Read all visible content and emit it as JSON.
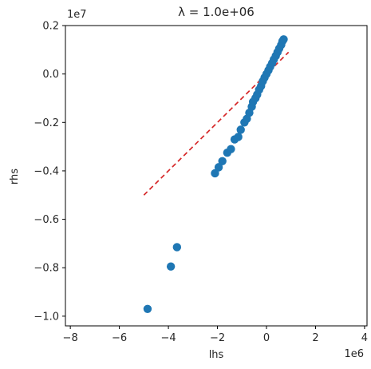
{
  "chart_data": {
    "type": "scatter",
    "title": "λ = 1.0e+06",
    "xlabel": "lhs",
    "ylabel": "rhs",
    "x_offset_label": "1e6",
    "y_offset_label": "1e7",
    "x_scale": 1000000,
    "y_scale": 10000000,
    "xlim": [
      -8200000,
      4100000
    ],
    "ylim": [
      -10400000,
      2000000
    ],
    "x_ticks": [
      -8000000,
      -6000000,
      -4000000,
      -2000000,
      0,
      2000000,
      4000000
    ],
    "x_tick_labels": [
      "−8",
      "−6",
      "−4",
      "−2",
      "0",
      "2",
      "4"
    ],
    "y_ticks": [
      -10000000,
      -8000000,
      -6000000,
      -4000000,
      -2000000,
      0,
      2000000
    ],
    "y_tick_labels": [
      "−1.0",
      "−0.8",
      "−0.6",
      "−0.4",
      "−0.2",
      "0.0",
      "0.2"
    ],
    "grid": false,
    "series": [
      {
        "kind": "points",
        "color": "#1f77b4",
        "points": [
          [
            -4850000,
            -9700000
          ],
          [
            -3900000,
            -7950000
          ],
          [
            -3650000,
            -7150000
          ],
          [
            -2100000,
            -4100000
          ],
          [
            -1950000,
            -3850000
          ],
          [
            -1800000,
            -3600000
          ],
          [
            -1600000,
            -3250000
          ],
          [
            -1450000,
            -3100000
          ],
          [
            -1300000,
            -2700000
          ],
          [
            -1150000,
            -2600000
          ],
          [
            -1050000,
            -2300000
          ],
          [
            -900000,
            -2000000
          ],
          [
            -800000,
            -1850000
          ],
          [
            -700000,
            -1600000
          ],
          [
            -600000,
            -1350000
          ],
          [
            -550000,
            -1150000
          ],
          [
            -450000,
            -1000000
          ],
          [
            -380000,
            -850000
          ],
          [
            -300000,
            -650000
          ],
          [
            -220000,
            -500000
          ],
          [
            -150000,
            -300000
          ],
          [
            -80000,
            -150000
          ],
          [
            0,
            0
          ],
          [
            80000,
            150000
          ],
          [
            150000,
            300000
          ],
          [
            230000,
            450000
          ],
          [
            300000,
            600000
          ],
          [
            380000,
            750000
          ],
          [
            450000,
            900000
          ],
          [
            520000,
            1050000
          ],
          [
            600000,
            1200000
          ],
          [
            650000,
            1350000
          ],
          [
            700000,
            1430000
          ]
        ]
      },
      {
        "kind": "line",
        "color": "#d62728",
        "dash": true,
        "points": [
          [
            -5000000,
            -5000000
          ],
          [
            900000,
            900000
          ]
        ]
      }
    ]
  }
}
